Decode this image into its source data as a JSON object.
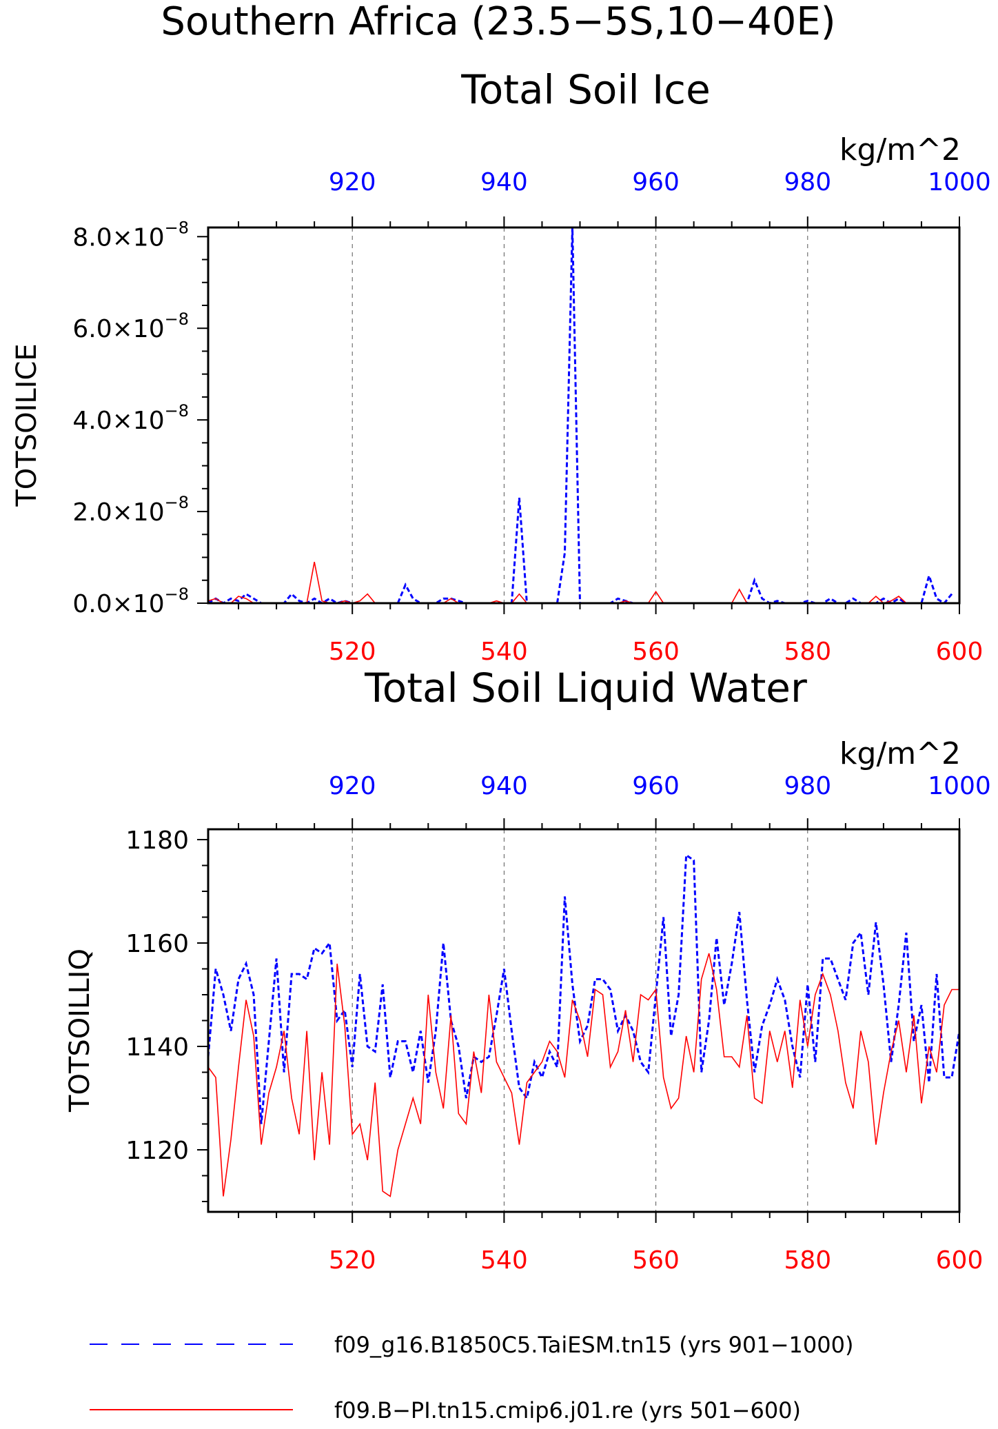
{
  "figure": {
    "title": "Southern Africa (23.5−5S,10−40E)",
    "legend": [
      {
        "label": "f09_g16.B1850C5.TaiESM.tn15 (yrs 901−1000)",
        "color": "#0000ff",
        "dash": "dashed"
      },
      {
        "label": "f09.B−PI.tn15.cmip6.j01.re (yrs 501−600)",
        "color": "#ff0000",
        "dash": "solid"
      }
    ],
    "colors": {
      "blue_series": "#0000ff",
      "red_series": "#ff0000",
      "axis": "#000000",
      "grid": "#555555"
    }
  },
  "chart_data": [
    {
      "type": "line",
      "title": "Total Soil Ice",
      "units": "kg/m^2",
      "ylabel": "TOTSOILICE",
      "ylim": [
        0,
        8.2e-08
      ],
      "yticks": [
        {
          "v": 0,
          "label": "0.0×10",
          "exp": "−8"
        },
        {
          "v": 2e-08,
          "label": "2.0×10",
          "exp": "−8"
        },
        {
          "v": 4e-08,
          "label": "4.0×10",
          "exp": "−8"
        },
        {
          "v": 6e-08,
          "label": "6.0×10",
          "exp": "−8"
        },
        {
          "v": 8e-08,
          "label": "8.0×10",
          "exp": "−8"
        }
      ],
      "bottom_axis": {
        "range": [
          501,
          600
        ],
        "ticks": [
          "520",
          "540",
          "560",
          "580",
          "600"
        ]
      },
      "top_axis": {
        "range": [
          901,
          1000
        ],
        "ticks": [
          "920",
          "940",
          "960",
          "980",
          "1000"
        ]
      },
      "series": [
        {
          "axis": "top",
          "color": "#0000ff",
          "dash": "dashed",
          "values": [
            0,
            1e-09,
            0,
            1e-09,
            5e-10,
            2e-09,
            1e-09,
            0,
            0,
            0,
            0,
            2e-09,
            5e-10,
            0,
            1e-09,
            0,
            1e-09,
            0,
            5e-10,
            0,
            0,
            0,
            0,
            0,
            0,
            0,
            4e-09,
            1e-09,
            0,
            0,
            0,
            1e-09,
            1e-09,
            5e-10,
            0,
            0,
            0,
            0,
            0,
            0,
            0,
            2.3e-08,
            0,
            0,
            0,
            0,
            0,
            1.1e-08,
            8.2e-08,
            0,
            0,
            0,
            0,
            0,
            1e-09,
            5e-10,
            0,
            0,
            0,
            0,
            0,
            0,
            0,
            0,
            0,
            0,
            0,
            0,
            0,
            0,
            0,
            0,
            5e-09,
            1e-09,
            0,
            5e-10,
            0,
            0,
            0,
            5e-10,
            0,
            0,
            1e-09,
            0,
            0,
            1e-09,
            0,
            0,
            0,
            1e-09,
            0,
            1e-09,
            0,
            0,
            0,
            6e-09,
            1e-09,
            0,
            2e-09
          ]
        },
        {
          "axis": "bottom",
          "color": "#ff0000",
          "dash": "solid",
          "values": [
            5e-10,
            1e-09,
            0,
            0,
            1.5e-09,
            1e-09,
            0,
            0,
            0,
            0,
            0,
            0,
            0,
            0,
            9e-09,
            5e-10,
            0,
            0,
            5e-10,
            0,
            5e-10,
            2e-09,
            0,
            0,
            0,
            0,
            0,
            0,
            0,
            0,
            0,
            0,
            1e-09,
            0,
            0,
            0,
            0,
            0,
            5e-10,
            0,
            0,
            2e-09,
            0,
            0,
            0,
            0,
            0,
            0,
            0,
            0,
            0,
            0,
            0,
            0,
            0,
            5e-10,
            0,
            0,
            0,
            2.5e-09,
            0,
            0,
            0,
            0,
            0,
            0,
            0,
            0,
            0,
            0,
            3e-09,
            0,
            0,
            0,
            0,
            0,
            0,
            0,
            0,
            0,
            0,
            0,
            0,
            0,
            0,
            0,
            0,
            0,
            1.5e-09,
            0,
            5e-10,
            1.5e-09,
            0,
            0,
            0,
            0,
            0,
            0,
            0
          ]
        }
      ]
    },
    {
      "type": "line",
      "title": "Total Soil Liquid Water",
      "units": "kg/m^2",
      "ylabel": "TOTSOILLIQ",
      "ylim": [
        1108,
        1182
      ],
      "yticks": [
        {
          "v": 1120,
          "label": "1120"
        },
        {
          "v": 1140,
          "label": "1140"
        },
        {
          "v": 1160,
          "label": "1160"
        },
        {
          "v": 1180,
          "label": "1180"
        }
      ],
      "bottom_axis": {
        "range": [
          501,
          600
        ],
        "ticks": [
          "520",
          "540",
          "560",
          "580",
          "600"
        ]
      },
      "top_axis": {
        "range": [
          901,
          1000
        ],
        "ticks": [
          "920",
          "940",
          "960",
          "980",
          "1000"
        ]
      },
      "series": [
        {
          "axis": "top",
          "color": "#0000ff",
          "dash": "dashed",
          "values": [
            1138,
            1155,
            1150,
            1143,
            1153,
            1156,
            1150,
            1125,
            1141,
            1157,
            1135,
            1154,
            1154,
            1153,
            1159,
            1158,
            1160,
            1145,
            1147,
            1136,
            1154,
            1140,
            1139,
            1152,
            1134,
            1141,
            1141,
            1135,
            1143,
            1133,
            1143,
            1160,
            1145,
            1140,
            1130,
            1138,
            1137,
            1138,
            1146,
            1155,
            1143,
            1132,
            1130,
            1137,
            1134,
            1139,
            1136,
            1169,
            1152,
            1141,
            1144,
            1153,
            1153,
            1151,
            1143,
            1146,
            1143,
            1137,
            1135,
            1150,
            1165,
            1142,
            1150,
            1177,
            1176,
            1135,
            1145,
            1161,
            1148,
            1156,
            1166,
            1149,
            1135,
            1144,
            1148,
            1153,
            1149,
            1140,
            1134,
            1152,
            1137,
            1157,
            1157,
            1153,
            1149,
            1160,
            1162,
            1150,
            1164,
            1152,
            1137,
            1148,
            1162,
            1141,
            1148,
            1133,
            1154,
            1134,
            1134,
            1143,
            1139
          ]
        },
        {
          "axis": "bottom",
          "color": "#ff0000",
          "dash": "solid",
          "values": [
            1136,
            1134,
            1111,
            1122,
            1136,
            1149,
            1142,
            1121,
            1131,
            1136,
            1143,
            1130,
            1123,
            1143,
            1118,
            1135,
            1121,
            1156,
            1144,
            1123,
            1125,
            1118,
            1133,
            1112,
            1111,
            1120,
            1125,
            1130,
            1125,
            1150,
            1135,
            1128,
            1146,
            1127,
            1125,
            1139,
            1131,
            1150,
            1137,
            1134,
            1131,
            1121,
            1133,
            1135,
            1137,
            1141,
            1139,
            1134,
            1149,
            1145,
            1138,
            1151,
            1150,
            1136,
            1139,
            1147,
            1137,
            1150,
            1149,
            1151,
            1134,
            1128,
            1130,
            1142,
            1135,
            1153,
            1158,
            1151,
            1138,
            1138,
            1136,
            1146,
            1130,
            1129,
            1143,
            1137,
            1143,
            1132,
            1149,
            1140,
            1150,
            1154,
            1150,
            1143,
            1133,
            1128,
            1143,
            1137,
            1121,
            1131,
            1139,
            1145,
            1135,
            1146,
            1129,
            1140,
            1135,
            1148,
            1151,
            1151,
            1156
          ]
        }
      ]
    }
  ]
}
